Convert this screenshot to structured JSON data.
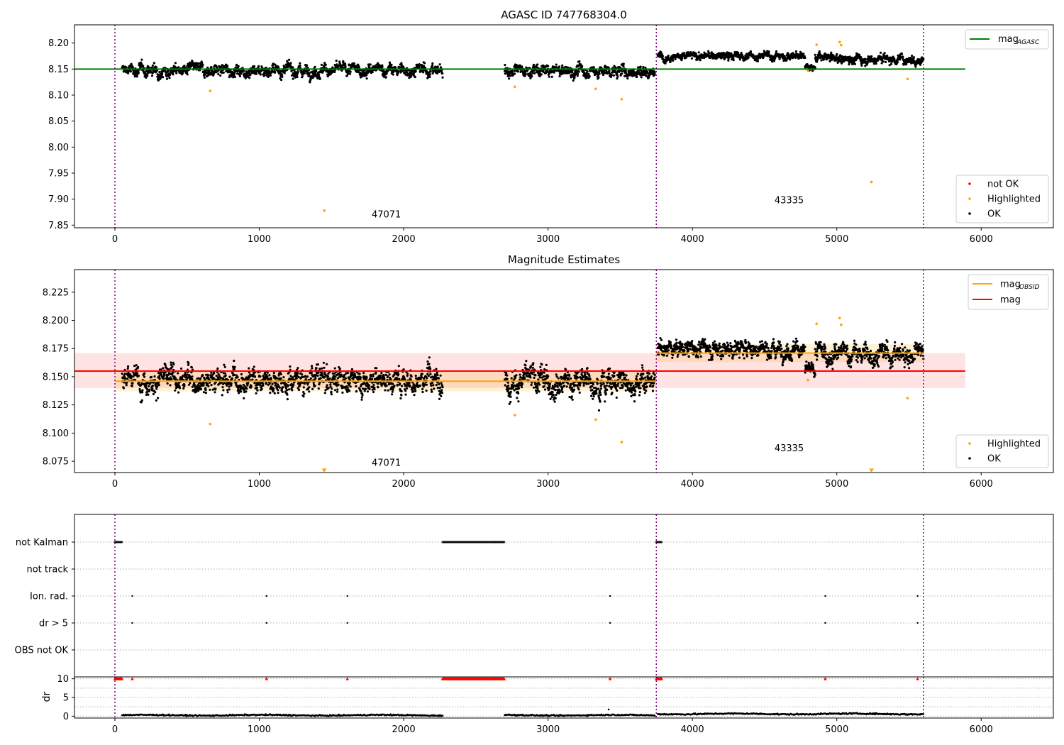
{
  "chart_data": [
    {
      "type": "scatter",
      "title": "AGASC ID 747768304.0",
      "xlim": [
        -280,
        6500
      ],
      "ylim": [
        7.845,
        8.235
      ],
      "xticks": [
        0,
        1000,
        2000,
        3000,
        4000,
        5000,
        6000
      ],
      "yticks": [
        7.85,
        7.9,
        7.95,
        8.0,
        8.05,
        8.1,
        8.15,
        8.2
      ],
      "obsid_boundaries": [
        0,
        3750,
        5600
      ],
      "obsid_labels": [
        {
          "text": "47071",
          "x": 1880,
          "y": 7.865
        },
        {
          "text": "43335",
          "x": 4670,
          "y": 7.892
        }
      ],
      "lines": [
        {
          "name": "mag_AGASC",
          "legend_main": "mag",
          "legend_sub": "AGASC",
          "color": "#008000",
          "x": [
            -280,
            5890
          ],
          "y": [
            8.15,
            8.15
          ]
        }
      ],
      "ok_segments": [
        {
          "x0": 50,
          "x1": 2270,
          "mean": 8.148,
          "spread": 0.011,
          "n": 1400
        },
        {
          "x0": 2700,
          "x1": 3740,
          "mean": 8.146,
          "spread": 0.011,
          "n": 700
        },
        {
          "x0": 3760,
          "x1": 4780,
          "mean": 8.175,
          "spread": 0.007,
          "n": 700
        },
        {
          "x0": 4780,
          "x1": 4850,
          "mean": 8.155,
          "spread": 0.005,
          "n": 60
        },
        {
          "x0": 4850,
          "x1": 5600,
          "mean": 8.17,
          "spread": 0.009,
          "n": 500
        }
      ],
      "highlighted_points": {
        "x": [
          660,
          1450,
          2770,
          3330,
          3510,
          4800,
          4860,
          5020,
          5030,
          5240,
          5490
        ],
        "y": [
          8.108,
          7.878,
          8.116,
          8.112,
          8.092,
          8.147,
          8.197,
          8.202,
          8.196,
          7.933,
          8.131
        ]
      },
      "legend_top": [
        {
          "label": "mag_AGASC"
        }
      ],
      "legend_bottom": [
        {
          "label": "not OK",
          "color": "#ff0000"
        },
        {
          "label": "Highlighted",
          "color": "#ffa500"
        },
        {
          "label": "OK",
          "color": "#000000"
        }
      ]
    },
    {
      "type": "scatter",
      "title": "Magnitude Estimates",
      "xlim": [
        -280,
        6500
      ],
      "ylim": [
        8.065,
        8.245
      ],
      "xticks": [
        0,
        1000,
        2000,
        3000,
        4000,
        5000,
        6000
      ],
      "yticks": [
        8.075,
        8.1,
        8.125,
        8.15,
        8.175,
        8.2,
        8.225
      ],
      "obsid_boundaries": [
        0,
        3750,
        5600
      ],
      "obsid_labels": [
        {
          "text": "47071",
          "x": 1880,
          "y": 8.071
        },
        {
          "text": "43335",
          "x": 4670,
          "y": 8.084
        }
      ],
      "bands": [
        {
          "x0": -280,
          "x1": 5890,
          "y0": 8.14,
          "y1": 8.171,
          "color": "#ff0000",
          "opacity": 0.11
        },
        {
          "x0": 0,
          "x1": 3750,
          "y0": 8.137,
          "y1": 8.155,
          "color": "#ffa500",
          "opacity": 0.16
        },
        {
          "x0": 3750,
          "x1": 5600,
          "y0": 8.163,
          "y1": 8.179,
          "color": "#ffa500",
          "opacity": 0.16
        }
      ],
      "lines": [
        {
          "name": "mag",
          "color": "#ff0000",
          "x": [
            -280,
            5890
          ],
          "y": [
            8.155,
            8.155
          ]
        },
        {
          "name": "mag_OBSID",
          "color": "#ffa500",
          "x": [
            0,
            3750
          ],
          "y": [
            8.146,
            8.146
          ]
        },
        {
          "name": "mag_OBSID",
          "color": "#ffa500",
          "x": [
            3750,
            5600
          ],
          "y": [
            8.171,
            8.171
          ]
        }
      ],
      "ok_segments": [
        {
          "x0": 50,
          "x1": 2270,
          "mean": 8.148,
          "spread": 0.011,
          "n": 1400
        },
        {
          "x0": 2700,
          "x1": 3740,
          "mean": 8.146,
          "spread": 0.011,
          "n": 700
        },
        {
          "x0": 3760,
          "x1": 4780,
          "mean": 8.175,
          "spread": 0.007,
          "n": 700
        },
        {
          "x0": 4780,
          "x1": 4850,
          "mean": 8.155,
          "spread": 0.005,
          "n": 60
        },
        {
          "x0": 4850,
          "x1": 5600,
          "mean": 8.17,
          "spread": 0.009,
          "n": 500
        }
      ],
      "highlighted_points": {
        "x": [
          660,
          2770,
          3330,
          3510,
          4800,
          4860,
          5020,
          5030,
          5490
        ],
        "y": [
          8.108,
          8.116,
          8.112,
          8.092,
          8.147,
          8.197,
          8.202,
          8.196,
          8.131
        ]
      },
      "out_of_range_markers": {
        "x": [
          1450,
          5240
        ],
        "y": [
          8.067,
          8.067
        ]
      },
      "legend_top": [
        {
          "label": "mag_OBSID",
          "main": "mag",
          "sub": "OBSID",
          "color": "#ffa500"
        },
        {
          "label": "mag",
          "main": "mag",
          "color": "#ff0000"
        }
      ],
      "legend_bottom": [
        {
          "label": "Highlighted",
          "color": "#ffa500"
        },
        {
          "label": "OK",
          "color": "#000000"
        }
      ]
    },
    {
      "type": "scatter",
      "title": "",
      "xlim": [
        -280,
        6500
      ],
      "categories": [
        "not Kalman",
        "not track",
        "Ion. rad.",
        "dr > 5",
        "OBS not OK"
      ],
      "flags": {
        "not Kalman": [
          [
            0,
            50
          ],
          [
            2270,
            2700
          ],
          [
            3750,
            3790
          ]
        ],
        "Ion. rad.": [
          120,
          1050,
          1610,
          3430,
          4920,
          5560
        ],
        "dr > 5": [
          120,
          1050,
          1610,
          3430,
          4920,
          5560
        ]
      },
      "obsid_boundaries": [
        0,
        3750,
        5600
      ]
    },
    {
      "type": "scatter",
      "title": "",
      "ylabel": "dr",
      "xlim": [
        -280,
        6500
      ],
      "ylim": [
        -0.5,
        10.5
      ],
      "xticks": [
        0,
        1000,
        2000,
        3000,
        4000,
        5000,
        6000
      ],
      "yticks": [
        0,
        5,
        10
      ],
      "red_markers_y": 10,
      "red_marker_ranges": [
        [
          0,
          50
        ],
        [
          2270,
          2700
        ],
        [
          3750,
          3790
        ]
      ],
      "red_marker_points": [
        120,
        1050,
        1610,
        3430,
        4920,
        5560
      ],
      "dr_segments": [
        {
          "x0": 50,
          "x1": 2270,
          "mean": 0.25
        },
        {
          "x0": 2700,
          "x1": 3740,
          "mean": 0.25
        },
        {
          "x0": 3760,
          "x1": 5600,
          "mean": 0.6
        }
      ],
      "obsid_boundaries": [
        0,
        3750,
        5600
      ]
    }
  ]
}
